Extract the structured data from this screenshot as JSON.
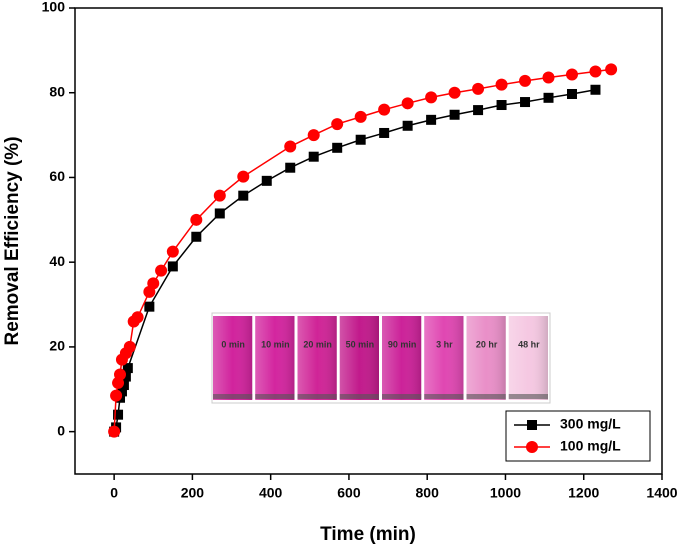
{
  "chart_data": {
    "type": "line",
    "xlabel": "Time (min)",
    "ylabel": "Removal Efficiency (%)",
    "xlim": [
      -100,
      1400
    ],
    "xticks": [
      0,
      200,
      400,
      600,
      800,
      1000,
      1200,
      1400
    ],
    "ylim": [
      -10,
      100
    ],
    "yticks": [
      0,
      20,
      40,
      60,
      80,
      100
    ],
    "legend": "lower right",
    "series": [
      {
        "name": "300 mg/L",
        "color": "#000000",
        "marker": "square",
        "x": [
          0,
          5,
          10,
          15,
          20,
          25,
          30,
          35,
          90,
          150,
          210,
          270,
          330,
          390,
          450,
          510,
          570,
          630,
          690,
          750,
          810,
          870,
          930,
          990,
          1050,
          1110,
          1170,
          1230
        ],
        "values": [
          0,
          1,
          4,
          8,
          9.5,
          11,
          13,
          15,
          29.5,
          39,
          46,
          51.5,
          55.7,
          59.2,
          62.3,
          64.9,
          67,
          68.9,
          70.5,
          72.2,
          73.6,
          74.8,
          75.9,
          77.1,
          77.8,
          78.8,
          79.7,
          80.7
        ]
      },
      {
        "name": "100 mg/L",
        "color": "#ff0000",
        "marker": "circle",
        "x": [
          0,
          5,
          10,
          15,
          20,
          30,
          40,
          50,
          60,
          90,
          100,
          120,
          150,
          210,
          270,
          330,
          450,
          510,
          570,
          630,
          690,
          750,
          810,
          870,
          930,
          990,
          1050,
          1110,
          1170,
          1230,
          1270
        ],
        "values": [
          0,
          8.5,
          11.5,
          13.5,
          17,
          18.5,
          20,
          26,
          27,
          33,
          35,
          38,
          42.5,
          50,
          55.7,
          60.2,
          67.3,
          70,
          72.6,
          74.3,
          76,
          77.5,
          78.9,
          80,
          80.9,
          81.9,
          82.8,
          83.6,
          84.3,
          85,
          85.5
        ]
      }
    ],
    "inset_labels": [
      "0 min",
      "10 min",
      "20 min",
      "50 min",
      "90 min",
      "3 hr",
      "20 hr",
      "48 hr"
    ]
  }
}
